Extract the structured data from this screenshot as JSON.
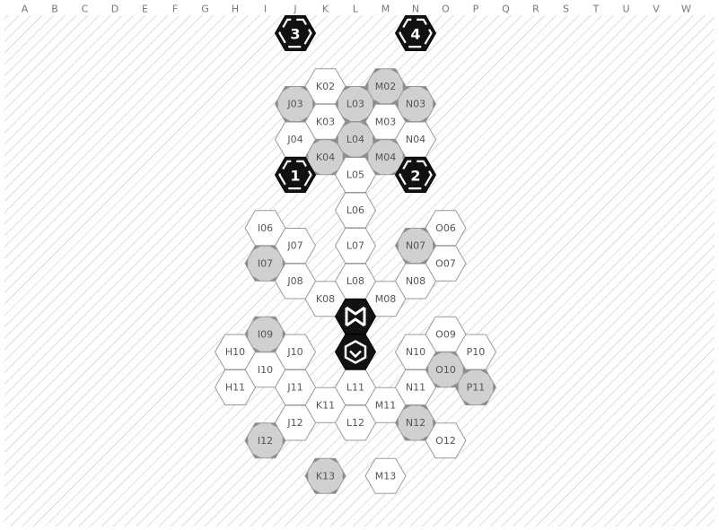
{
  "columns": [
    "A",
    "B",
    "C",
    "D",
    "E",
    "F",
    "G",
    "H",
    "I",
    "J",
    "K",
    "L",
    "M",
    "N",
    "O",
    "P",
    "Q",
    "R",
    "S",
    "T",
    "U",
    "V",
    "W"
  ],
  "colors": {
    "background": "#ffffff",
    "hatch": "#c6c6c6",
    "hex_border": "#9a9a9a",
    "hex_fill": "#ffffff",
    "special_fill": "#d0d0d0",
    "corner_mark": "#8c8c8c",
    "dark_hex": "#111111",
    "label": "#555555"
  },
  "hexes": [
    {
      "id": "K02",
      "label": "K02",
      "col": "K",
      "row": 2,
      "style": "plain"
    },
    {
      "id": "M02",
      "label": "M02",
      "col": "M",
      "row": 2,
      "style": "special"
    },
    {
      "id": "K03",
      "label": "K03",
      "col": "K",
      "row": 3,
      "style": "plain"
    },
    {
      "id": "M03",
      "label": "M03",
      "col": "M",
      "row": 3,
      "style": "plain"
    },
    {
      "id": "J03",
      "label": "J03",
      "col": "J",
      "row": 3,
      "style": "special"
    },
    {
      "id": "L03",
      "label": "L03",
      "col": "L",
      "row": 3,
      "style": "special"
    },
    {
      "id": "N03",
      "label": "N03",
      "col": "N",
      "row": 3,
      "style": "special"
    },
    {
      "id": "K04",
      "label": "K04",
      "col": "K",
      "row": 4,
      "style": "special"
    },
    {
      "id": "M04",
      "label": "M04",
      "col": "M",
      "row": 4,
      "style": "special"
    },
    {
      "id": "J04",
      "label": "J04",
      "col": "J",
      "row": 4,
      "style": "plain"
    },
    {
      "id": "L04",
      "label": "L04",
      "col": "L",
      "row": 4,
      "style": "special"
    },
    {
      "id": "N04",
      "label": "N04",
      "col": "N",
      "row": 4,
      "style": "plain"
    },
    {
      "id": "L05",
      "label": "L05",
      "col": "L",
      "row": 5,
      "style": "plain"
    },
    {
      "id": "I06",
      "label": "I06",
      "col": "I",
      "row": 6,
      "style": "plain"
    },
    {
      "id": "L06",
      "label": "L06",
      "col": "L",
      "row": 6,
      "style": "plain"
    },
    {
      "id": "O06",
      "label": "O06",
      "col": "O",
      "row": 6,
      "style": "plain"
    },
    {
      "id": "I07",
      "label": "I07",
      "col": "I",
      "row": 7,
      "style": "special"
    },
    {
      "id": "O07",
      "label": "O07",
      "col": "O",
      "row": 7,
      "style": "plain"
    },
    {
      "id": "J07",
      "label": "J07",
      "col": "J",
      "row": 7,
      "style": "plain"
    },
    {
      "id": "L07",
      "label": "L07",
      "col": "L",
      "row": 7,
      "style": "plain"
    },
    {
      "id": "N07",
      "label": "N07",
      "col": "N",
      "row": 7,
      "style": "special"
    },
    {
      "id": "K08",
      "label": "K08",
      "col": "K",
      "row": 8,
      "style": "plain"
    },
    {
      "id": "M08",
      "label": "M08",
      "col": "M",
      "row": 8,
      "style": "plain"
    },
    {
      "id": "J08",
      "label": "J08",
      "col": "J",
      "row": 8,
      "style": "plain"
    },
    {
      "id": "L08",
      "label": "L08",
      "col": "L",
      "row": 8,
      "style": "plain"
    },
    {
      "id": "N08",
      "label": "N08",
      "col": "N",
      "row": 8,
      "style": "plain"
    },
    {
      "id": "I09",
      "label": "I09",
      "col": "I",
      "row": 9,
      "style": "special"
    },
    {
      "id": "O09",
      "label": "O09",
      "col": "O",
      "row": 9,
      "style": "plain"
    },
    {
      "id": "I10",
      "label": "I10",
      "col": "I",
      "row": 10,
      "style": "plain"
    },
    {
      "id": "O10",
      "label": "O10",
      "col": "O",
      "row": 10,
      "style": "special"
    },
    {
      "id": "H10",
      "label": "H10",
      "col": "H",
      "row": 10,
      "style": "plain"
    },
    {
      "id": "J10",
      "label": "J10",
      "col": "J",
      "row": 10,
      "style": "plain"
    },
    {
      "id": "N10",
      "label": "N10",
      "col": "N",
      "row": 10,
      "style": "plain"
    },
    {
      "id": "P10",
      "label": "P10",
      "col": "P",
      "row": 10,
      "style": "plain"
    },
    {
      "id": "K11",
      "label": "K11",
      "col": "K",
      "row": 11,
      "style": "plain"
    },
    {
      "id": "M11",
      "label": "M11",
      "col": "M",
      "row": 11,
      "style": "plain"
    },
    {
      "id": "H11",
      "label": "H11",
      "col": "H",
      "row": 11,
      "style": "plain"
    },
    {
      "id": "J11",
      "label": "J11",
      "col": "J",
      "row": 11,
      "style": "plain"
    },
    {
      "id": "L11",
      "label": "L11",
      "col": "L",
      "row": 11,
      "style": "plain"
    },
    {
      "id": "N11",
      "label": "N11",
      "col": "N",
      "row": 11,
      "style": "plain"
    },
    {
      "id": "P11",
      "label": "P11",
      "col": "P",
      "row": 11,
      "style": "special"
    },
    {
      "id": "I12",
      "label": "I12",
      "col": "I",
      "row": 12,
      "style": "special"
    },
    {
      "id": "O12",
      "label": "O12",
      "col": "O",
      "row": 12,
      "style": "plain"
    },
    {
      "id": "J12",
      "label": "J12",
      "col": "J",
      "row": 12,
      "style": "plain"
    },
    {
      "id": "L12",
      "label": "L12",
      "col": "L",
      "row": 12,
      "style": "plain"
    },
    {
      "id": "N12",
      "label": "N12",
      "col": "N",
      "row": 12,
      "style": "special"
    },
    {
      "id": "K13",
      "label": "K13",
      "col": "K",
      "row": 13,
      "style": "special"
    },
    {
      "id": "M13",
      "label": "M13",
      "col": "M",
      "row": 13,
      "style": "plain"
    }
  ],
  "start_pads": [
    {
      "number": "3",
      "col": "J",
      "row": 1,
      "icon": "start-pad-icon"
    },
    {
      "number": "4",
      "col": "N",
      "row": 1,
      "icon": "start-pad-icon"
    },
    {
      "number": "1",
      "col": "J",
      "row": 5,
      "icon": "start-pad-icon"
    },
    {
      "number": "2",
      "col": "N",
      "row": 5,
      "icon": "start-pad-icon"
    }
  ],
  "markers": [
    {
      "name": "crossed-marker",
      "col": "L",
      "row": 9,
      "icon": "crossed-chevrons-icon"
    },
    {
      "name": "shield-marker",
      "col": "L",
      "row": 10,
      "icon": "shield-chevron-icon"
    }
  ]
}
